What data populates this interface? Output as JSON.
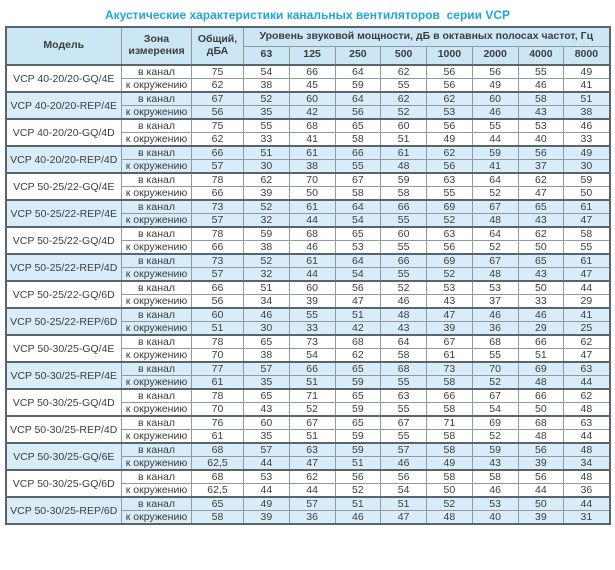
{
  "page": {
    "title": "Акустические характеристики канальных вентиляторов  серии VCP"
  },
  "colors": {
    "title": "#1ea7dd",
    "header_bg": "#cbe6f5",
    "stripe_bg": "#d8ecf9",
    "grid_border": "#8f9aa3",
    "frame_border": "#5a646d",
    "text": "#3d3d3d"
  },
  "table": {
    "headers": {
      "model": "Модель",
      "zone": "Зона измерения",
      "total": "Общий, дБА",
      "group": "Уровень звуковой мощности, дБ в октавных полосах частот, Гц",
      "frequencies": [
        "63",
        "125",
        "250",
        "500",
        "1000",
        "2000",
        "4000",
        "8000"
      ]
    },
    "models": [
      {
        "name": "VCP 40-20/20-GQ/4E",
        "shaded": false,
        "rows": [
          {
            "zone": "в канал",
            "total": "75",
            "levels": [
              54,
              66,
              64,
              62,
              56,
              56,
              55,
              49
            ]
          },
          {
            "zone": "к окружению",
            "total": "62",
            "levels": [
              38,
              45,
              59,
              55,
              56,
              49,
              46,
              41
            ]
          }
        ]
      },
      {
        "name": "VCP 40-20/20-REP/4E",
        "shaded": true,
        "rows": [
          {
            "zone": "в канал",
            "total": "67",
            "levels": [
              52,
              60,
              64,
              62,
              62,
              60,
              58,
              51
            ]
          },
          {
            "zone": "к окружению",
            "total": "56",
            "levels": [
              35,
              42,
              56,
              52,
              53,
              46,
              43,
              38
            ]
          }
        ]
      },
      {
        "name": "VCP 40-20/20-GQ/4D",
        "shaded": false,
        "rows": [
          {
            "zone": "в канал",
            "total": "75",
            "levels": [
              55,
              68,
              65,
              60,
              56,
              55,
              53,
              46
            ]
          },
          {
            "zone": "к окружению",
            "total": "62",
            "levels": [
              33,
              41,
              58,
              51,
              49,
              44,
              40,
              33
            ]
          }
        ]
      },
      {
        "name": "VCP 40-20/20-REP/4D",
        "shaded": true,
        "rows": [
          {
            "zone": "в канал",
            "total": "66",
            "levels": [
              51,
              61,
              66,
              61,
              62,
              59,
              56,
              49
            ]
          },
          {
            "zone": "к окружению",
            "total": "57",
            "levels": [
              30,
              38,
              55,
              48,
              56,
              41,
              37,
              30
            ]
          }
        ]
      },
      {
        "name": "VCP 50-25/22-GQ/4E",
        "shaded": false,
        "rows": [
          {
            "zone": "в канал",
            "total": "78",
            "levels": [
              62,
              70,
              67,
              59,
              63,
              64,
              62,
              59
            ]
          },
          {
            "zone": "к окружению",
            "total": "66",
            "levels": [
              39,
              50,
              58,
              58,
              55,
              52,
              47,
              50
            ]
          }
        ]
      },
      {
        "name": "VCP 50-25/22-REP/4E",
        "shaded": true,
        "rows": [
          {
            "zone": "в канал",
            "total": "73",
            "levels": [
              52,
              61,
              64,
              66,
              69,
              67,
              65,
              61
            ]
          },
          {
            "zone": "к окружению",
            "total": "57",
            "levels": [
              32,
              44,
              54,
              55,
              52,
              48,
              43,
              47
            ]
          }
        ]
      },
      {
        "name": "VCP 50-25/22-GQ/4D",
        "shaded": false,
        "rows": [
          {
            "zone": "в канал",
            "total": "78",
            "levels": [
              59,
              68,
              65,
              60,
              63,
              64,
              62,
              58
            ]
          },
          {
            "zone": "к окружению",
            "total": "66",
            "levels": [
              38,
              46,
              53,
              55,
              56,
              52,
              50,
              55
            ]
          }
        ]
      },
      {
        "name": "VCP 50-25/22-REP/4D",
        "shaded": true,
        "rows": [
          {
            "zone": "в канал",
            "total": "73",
            "levels": [
              52,
              61,
              64,
              66,
              69,
              67,
              65,
              61
            ]
          },
          {
            "zone": "к окружению",
            "total": "57",
            "levels": [
              32,
              44,
              54,
              55,
              52,
              48,
              43,
              47
            ]
          }
        ]
      },
      {
        "name": "VCP 50-25/22-GQ/6D",
        "shaded": false,
        "rows": [
          {
            "zone": "в канал",
            "total": "66",
            "levels": [
              51,
              60,
              56,
              52,
              53,
              53,
              50,
              44
            ]
          },
          {
            "zone": "к окружению",
            "total": "56",
            "levels": [
              34,
              39,
              47,
              46,
              43,
              37,
              33,
              29
            ]
          }
        ]
      },
      {
        "name": "VCP 50-25/22-REP/6D",
        "shaded": true,
        "rows": [
          {
            "zone": "в канал",
            "total": "60",
            "levels": [
              46,
              55,
              51,
              48,
              47,
              46,
              46,
              41
            ]
          },
          {
            "zone": "к окружению",
            "total": "51",
            "levels": [
              30,
              33,
              42,
              43,
              39,
              36,
              29,
              25
            ]
          }
        ]
      },
      {
        "name": "VCP 50-30/25-GQ/4E",
        "shaded": false,
        "rows": [
          {
            "zone": "в канал",
            "total": "78",
            "levels": [
              65,
              73,
              68,
              64,
              67,
              68,
              66,
              62
            ]
          },
          {
            "zone": "к окружению",
            "total": "70",
            "levels": [
              38,
              54,
              62,
              58,
              61,
              55,
              51,
              47
            ]
          }
        ]
      },
      {
        "name": "VCP 50-30/25-REP/4E",
        "shaded": true,
        "rows": [
          {
            "zone": "в канал",
            "total": "77",
            "levels": [
              57,
              66,
              65,
              68,
              73,
              70,
              69,
              63
            ]
          },
          {
            "zone": "к окружению",
            "total": "61",
            "levels": [
              35,
              51,
              59,
              55,
              58,
              52,
              48,
              44
            ]
          }
        ]
      },
      {
        "name": "VCP 50-30/25-GQ/4D",
        "shaded": false,
        "rows": [
          {
            "zone": "в канал",
            "total": "78",
            "levels": [
              65,
              71,
              65,
              63,
              66,
              67,
              66,
              62
            ]
          },
          {
            "zone": "к окружению",
            "total": "70",
            "levels": [
              43,
              52,
              59,
              55,
              58,
              54,
              50,
              48
            ]
          }
        ]
      },
      {
        "name": "VCP 50-30/25-REP/4D",
        "shaded": false,
        "rows": [
          {
            "zone": "в канал",
            "total": "76",
            "levels": [
              60,
              67,
              65,
              67,
              71,
              69,
              68,
              63
            ]
          },
          {
            "zone": "к окружению",
            "total": "61",
            "levels": [
              35,
              51,
              59,
              55,
              58,
              52,
              48,
              44
            ]
          }
        ]
      },
      {
        "name": "VCP 50-30/25-GQ/6E",
        "shaded": true,
        "rows": [
          {
            "zone": "в канал",
            "total": "68",
            "levels": [
              57,
              63,
              59,
              57,
              58,
              59,
              56,
              48
            ]
          },
          {
            "zone": "к окружению",
            "total": "62,5",
            "levels": [
              44,
              47,
              51,
              46,
              49,
              43,
              39,
              34
            ]
          }
        ]
      },
      {
        "name": "VCP 50-30/25-GQ/6D",
        "shaded": false,
        "rows": [
          {
            "zone": "в канал",
            "total": "68",
            "levels": [
              53,
              62,
              56,
              56,
              58,
              58,
              56,
              48
            ]
          },
          {
            "zone": "к окружению",
            "total": "62,5",
            "levels": [
              44,
              44,
              52,
              54,
              50,
              46,
              44,
              36
            ]
          }
        ]
      },
      {
        "name": "VCP 50-30/25-REP/6D",
        "shaded": true,
        "rows": [
          {
            "zone": "в канал",
            "total": "65",
            "levels": [
              49,
              57,
              51,
              51,
              52,
              53,
              50,
              44
            ]
          },
          {
            "zone": "к окружению",
            "total": "58",
            "levels": [
              39,
              36,
              46,
              47,
              48,
              40,
              39,
              31
            ]
          }
        ]
      }
    ]
  }
}
